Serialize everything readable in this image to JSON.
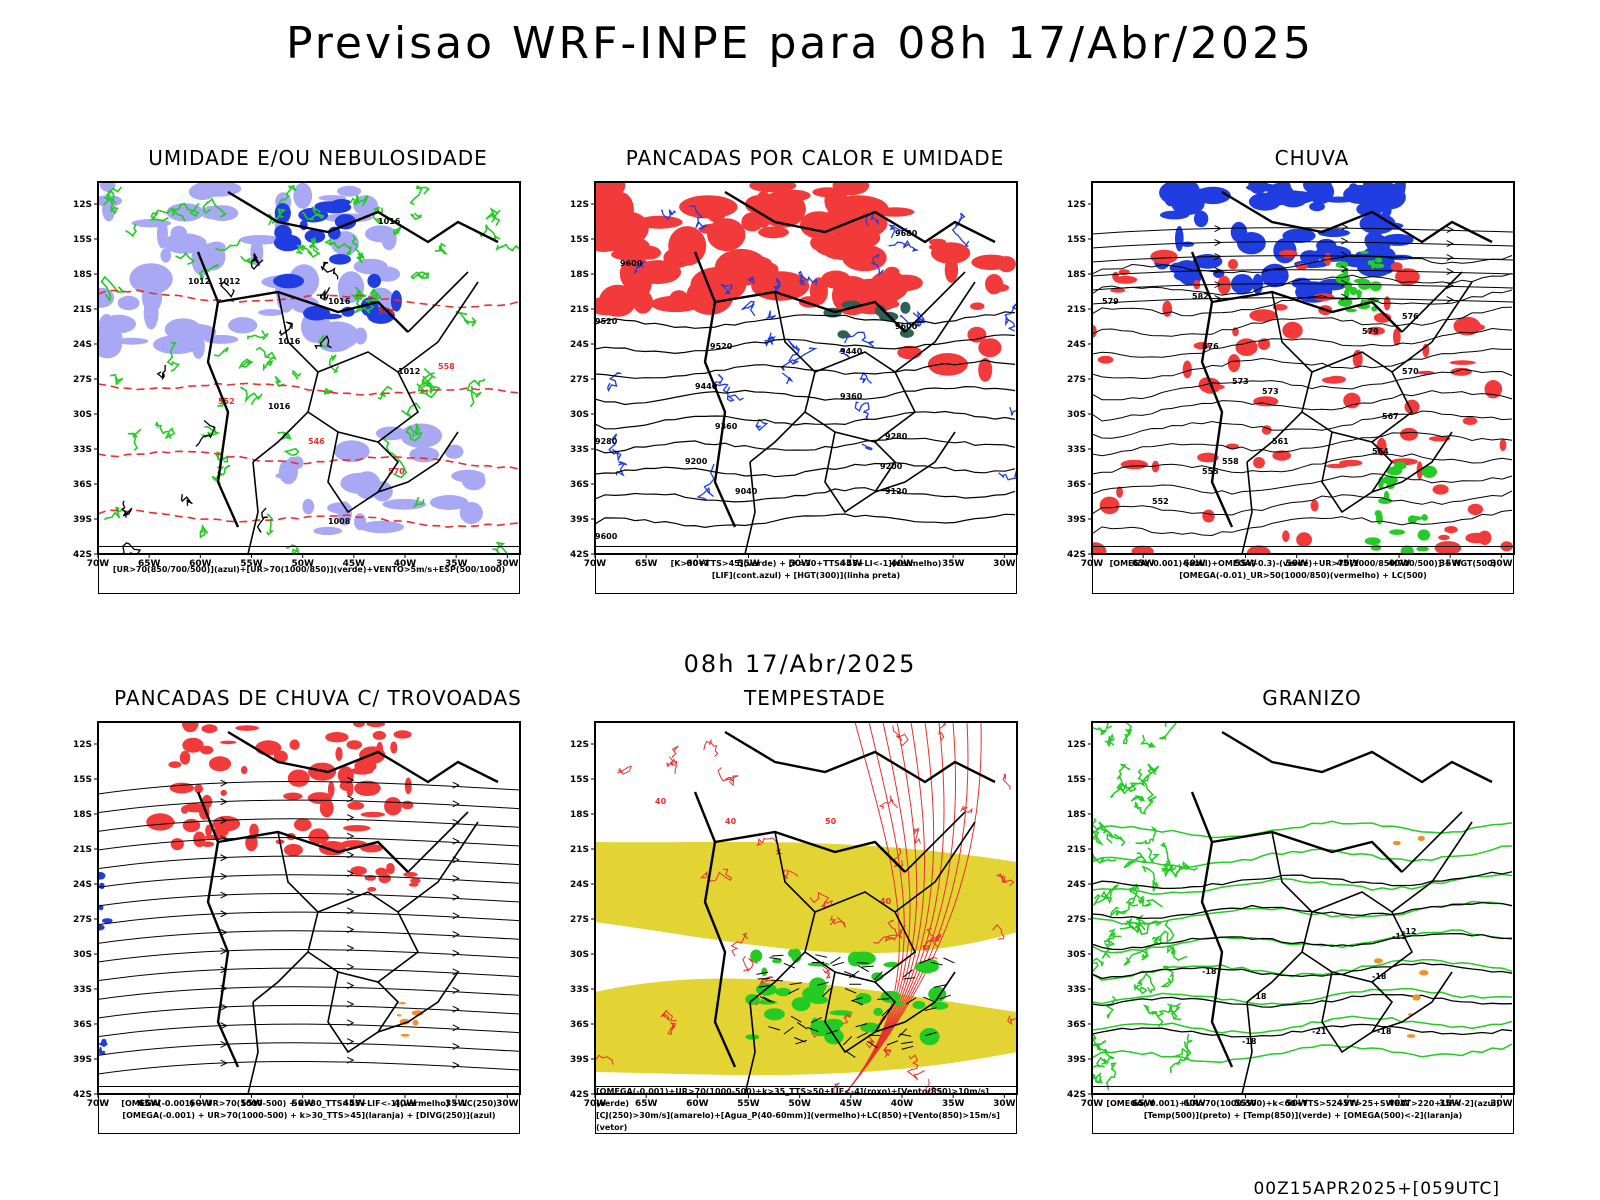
{
  "header": {
    "title": "Previsao WRF-INPE  para 08h 17/Abr/2025"
  },
  "mid_date": "08h 17/Abr/2025",
  "footer": "00Z15APR2025+[059UTC]",
  "axes": {
    "lat_labels": [
      "12S",
      "15S",
      "18S",
      "21S",
      "24S",
      "27S",
      "30S",
      "33S",
      "36S",
      "39S",
      "42S"
    ],
    "lon_labels": [
      "70W",
      "65W",
      "60W",
      "55W",
      "50W",
      "45W",
      "40W",
      "35W",
      "30W"
    ]
  },
  "colors": {
    "red": "#f23a3a",
    "blue_dark": "#1f3de0",
    "blue_light": "#a8a8f5",
    "green": "#22cc22",
    "yellow": "#e3d333",
    "orange": "#f0902a",
    "black": "#000000",
    "teal": "#2f5f55"
  },
  "panels": [
    {
      "title": "UMIDADE E/OU NEBULOSIDADE",
      "legend_lines": [
        "[UR>70(850/700/500)](azul)+[UR>70(1000/850)](verde)+VENTO>5m/s+ESP(500/1000)"
      ],
      "contour_labels": [
        "1016",
        "1012",
        "1012",
        "1016",
        "1016",
        "1016",
        "1012",
        "570",
        "564",
        "558",
        "552",
        "546",
        "1008"
      ]
    },
    {
      "title": "PANCADAS POR CALOR E UMIDADE",
      "legend_lines": [
        "[K>30+TTS>45](verde) + [K>30+TTS>45+LI<-1](vermelho)",
        "[LIF](cont.azul) + [HGT(300)](linha preta)"
      ],
      "contour_labels": [
        "9680",
        "9600",
        "9600",
        "9520",
        "9520",
        "9440",
        "9440",
        "9360",
        "9360",
        "9280",
        "9280",
        "9200",
        "9200",
        "9120",
        "9040",
        "9600"
      ]
    },
    {
      "title": "CHUVA",
      "legend_lines": [
        "[OMEGA(-0.001)-(azul)+OMEGA(-0.3)-(verde)+UR>70(1000/850/700/500)] + HGT(500)",
        "[OMEGA(-0.01)_UR>50(1000/850)(vermelho) + LC(500)"
      ],
      "contour_labels": [
        "582",
        "579",
        "576",
        "573",
        "570",
        "567",
        "564",
        "561",
        "558",
        "555",
        "552",
        "576",
        "579",
        "573"
      ]
    },
    {
      "title": "PANCADAS DE CHUVA C/ TROVOADAS",
      "legend_lines": [
        "[OMEGA(-0.001) + UR>70(1000-500) + k>30_TTS>45+LIF<-1](vermelho) + LC(250)",
        "[OMEGA(-0.001) + UR>70(1000-500) + k>30_TTS>45](laranja) + [DIVG(250)](azul)"
      ],
      "contour_labels": []
    },
    {
      "title": "TEMPESTADE",
      "legend_lines": [
        "[OMEGA(-0.001)+UR>70(1000-500)+k>35_TTS>50+LIF<-4](roxo)+[Vento(850)>10m/s](verde)",
        "[CJ(250)>30m/s](amarelo)+[Agua_P(40-60mm)](vermelho)+LC(850)+[Vento(850)>15m/s](vetor)"
      ],
      "contour_labels": [
        "40",
        "40",
        "50",
        "40"
      ]
    },
    {
      "title": "GRANIZO",
      "legend_lines": [
        "[OMEGA(-0.001)+UR>70(1000-500)+k<60+TTS>52+VT>25+SWEAT>220+LIF<-2](azul)",
        "[Temp(500)](preto) + [Temp(850)](verde) + [OMEGA(500)<-2](laranja)"
      ],
      "contour_labels": [
        "-12",
        "-18",
        "-18",
        "-18",
        "-15",
        "-18",
        "-21",
        "-18"
      ]
    }
  ]
}
